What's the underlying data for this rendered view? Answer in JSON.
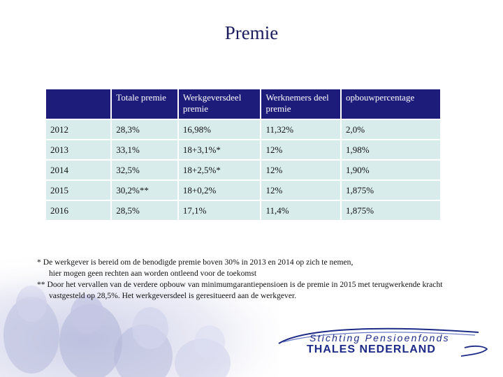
{
  "slide": {
    "title": "Premie"
  },
  "table": {
    "headers": [
      "",
      "Totale premie",
      "Werkgeversdeel premie",
      "Werknemers deel premie",
      "opbouwpercentage"
    ],
    "rows": [
      [
        "2012",
        "28,3%",
        "16,98%",
        "11,32%",
        "2,0%"
      ],
      [
        "2013",
        "33,1%",
        "18+3,1%*",
        "12%",
        "1,98%"
      ],
      [
        "2014",
        "32,5%",
        "18+2,5%*",
        "12%",
        "1,90%"
      ],
      [
        "2015",
        "30,2%**",
        "18+0,2%",
        "12%",
        "1,875%"
      ],
      [
        "2016",
        "28,5%",
        "17,1%",
        "11,4%",
        "1,875%"
      ]
    ]
  },
  "notes": {
    "note1_line1": "*   De werkgever is bereid om de benodigde premie boven 30% in 2013 en 2014  op zich te nemen,",
    "note1_line2": "hier mogen geen rechten aan worden ontleend voor de  toekomst",
    "note2_line1": "** Door het vervallen van de verdere opbouw van minimumgarantiepensioen is de premie in 2015 met terugwerkende kracht",
    "note2_line2": "vastgesteld op 28,5%. Het werkgeversdeel is geresitueerd aan de werkgever."
  },
  "logo": {
    "line1": "Stichting Pensioenfonds",
    "line2": "THALES NEDERLAND",
    "color": "#1d2a86"
  },
  "colors": {
    "title": "#1b1b5e",
    "header_bg": "#1e1c7a",
    "cell_bg": "#d8ecec"
  }
}
